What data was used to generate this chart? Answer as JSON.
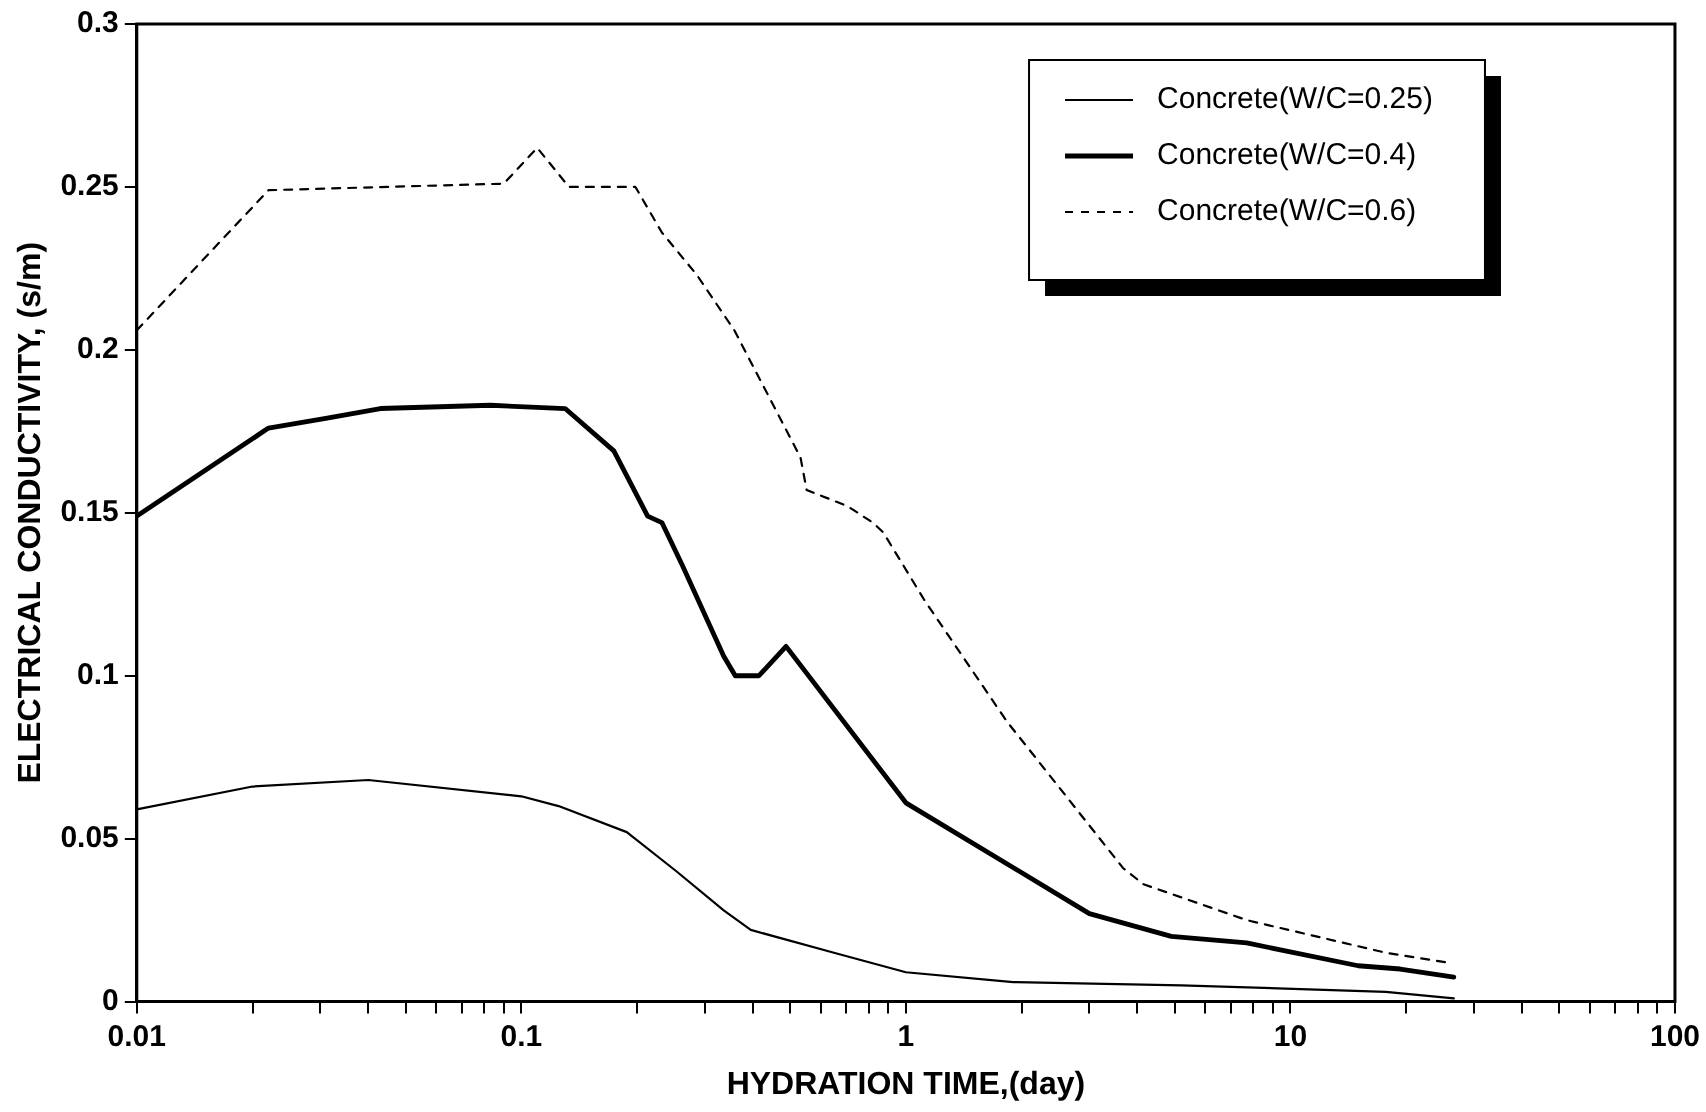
{
  "chart_data": {
    "type": "line",
    "xlabel": "HYDRATION TIME,(day)",
    "ylabel": "ELECTRICAL CONDUCTIVITY, (s/m)",
    "log": "x",
    "xlim": [
      0.01,
      100
    ],
    "ylim": [
      0,
      0.3
    ],
    "yticks": [
      0,
      0.05,
      0.1,
      0.15,
      0.2,
      0.25,
      0.3
    ],
    "xticks": [
      0.01,
      {
        "value": 0.02,
        "label": null
      },
      {
        "value": 0.03,
        "label": null
      },
      {
        "value": 0.04,
        "label": null
      },
      {
        "value": 0.05,
        "label": null
      },
      {
        "value": 0.06,
        "label": null
      },
      {
        "value": 0.07,
        "label": null
      },
      {
        "value": 0.08,
        "label": null
      },
      {
        "value": 0.09,
        "label": null
      },
      0.1,
      {
        "value": 0.2,
        "label": null
      },
      {
        "value": 0.3,
        "label": null
      },
      {
        "value": 0.4,
        "label": null
      },
      {
        "value": 0.5,
        "label": null
      },
      {
        "value": 0.6,
        "label": null
      },
      {
        "value": 0.7,
        "label": null
      },
      {
        "value": 0.8,
        "label": null
      },
      {
        "value": 0.9,
        "label": null
      },
      1,
      {
        "value": 2,
        "label": null
      },
      {
        "value": 3,
        "label": null
      },
      {
        "value": 4,
        "label": null
      },
      {
        "value": 5,
        "label": null
      },
      {
        "value": 6,
        "label": null
      },
      {
        "value": 7,
        "label": null
      },
      {
        "value": 8,
        "label": null
      },
      {
        "value": 9,
        "label": null
      },
      10,
      {
        "value": 20,
        "label": null
      },
      {
        "value": 30,
        "label": null
      },
      {
        "value": 40,
        "label": null
      },
      {
        "value": 50,
        "label": null
      },
      {
        "value": 60,
        "label": null
      },
      {
        "value": 70,
        "label": null
      },
      {
        "value": 80,
        "label": null
      },
      {
        "value": 90,
        "label": null
      },
      100
    ],
    "grid": false,
    "legend": "top right",
    "marker": "none",
    "series": [
      {
        "name": "Concrete(W/C=0.25)",
        "color": "#000000",
        "line_style": "solid",
        "x": [
          0.01,
          0.02,
          0.04,
          0.1,
          0.125,
          0.188,
          0.253,
          0.336,
          0.395,
          0.65,
          1.0,
          1.9,
          5.2,
          17.7,
          26.6
        ],
        "values": [
          0.059,
          0.066,
          0.068,
          0.063,
          0.06,
          0.052,
          0.04,
          0.028,
          0.022,
          0.015,
          0.009,
          0.006,
          0.005,
          0.003,
          0.001
        ]
      },
      {
        "name": "Concrete(W/C=0.4)",
        "color": "#000000",
        "line_style": "solid",
        "x": [
          0.01,
          0.022,
          0.031,
          0.043,
          0.083,
          0.13,
          0.174,
          0.213,
          0.232,
          0.262,
          0.336,
          0.36,
          0.415,
          0.488,
          1.0,
          3.0,
          4.9,
          7.7,
          15,
          19.3,
          26.6
        ],
        "values": [
          0.149,
          0.176,
          0.179,
          0.182,
          0.183,
          0.182,
          0.169,
          0.149,
          0.147,
          0.134,
          0.106,
          0.1,
          0.1,
          0.109,
          0.061,
          0.027,
          0.02,
          0.018,
          0.011,
          0.01,
          0.0075
        ]
      },
      {
        "name": "Concrete(W/C=0.6)",
        "color": "#000000",
        "line_style": "dashed",
        "x": [
          0.01,
          0.022,
          0.09,
          0.11,
          0.133,
          0.198,
          0.232,
          0.286,
          0.358,
          0.532,
          0.552,
          0.706,
          0.82,
          0.873,
          1.12,
          1.83,
          3.67,
          4.15,
          7.7,
          17.7,
          25.6
        ],
        "values": [
          0.206,
          0.249,
          0.251,
          0.262,
          0.25,
          0.25,
          0.236,
          0.223,
          0.206,
          0.167,
          0.157,
          0.152,
          0.147,
          0.144,
          0.123,
          0.086,
          0.041,
          0.036,
          0.025,
          0.015,
          0.012
        ]
      }
    ]
  }
}
